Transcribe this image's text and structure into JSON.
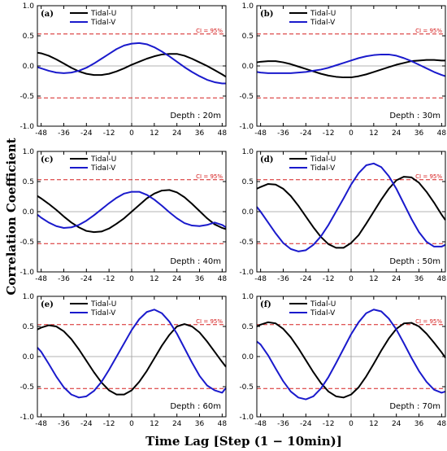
{
  "figure": {
    "xlabel": "Time Lag [Step (1 − 10min)]",
    "ylabel": "Correlation Coefficient"
  },
  "colors": {
    "tidal_u": "#000000",
    "tidal_v": "#1a1acc",
    "ci": "#d62020",
    "zero": "#9a9a9a"
  },
  "chart_data": [
    {
      "type": "line",
      "panel": "(a)",
      "annotation": "Depth : 20m",
      "ci_label": "CI = 95%",
      "ci": 0.53,
      "xlim": [
        -50,
        50
      ],
      "ylim": [
        -1.0,
        1.0
      ],
      "xticks": [
        -48,
        -36,
        -24,
        -12,
        0,
        12,
        24,
        36,
        48
      ],
      "yticks": [
        -1.0,
        -0.5,
        0.0,
        0.5,
        1.0
      ],
      "legend": [
        "Tidal-U",
        "Tidal-V"
      ],
      "x": [
        -50,
        -48,
        -44,
        -40,
        -36,
        -32,
        -28,
        -24,
        -20,
        -16,
        -12,
        -8,
        -4,
        0,
        4,
        8,
        12,
        16,
        20,
        24,
        28,
        32,
        36,
        40,
        44,
        48,
        50
      ],
      "series": [
        {
          "name": "Tidal-U",
          "values": [
            0.22,
            0.21,
            0.17,
            0.11,
            0.04,
            -0.03,
            -0.09,
            -0.13,
            -0.15,
            -0.15,
            -0.13,
            -0.09,
            -0.04,
            0.02,
            0.07,
            0.12,
            0.16,
            0.19,
            0.2,
            0.2,
            0.17,
            0.12,
            0.06,
            0.0,
            -0.07,
            -0.14,
            -0.18
          ]
        },
        {
          "name": "Tidal-V",
          "values": [
            -0.02,
            -0.04,
            -0.08,
            -0.11,
            -0.12,
            -0.11,
            -0.08,
            -0.03,
            0.04,
            0.12,
            0.2,
            0.28,
            0.34,
            0.37,
            0.38,
            0.36,
            0.31,
            0.24,
            0.16,
            0.07,
            -0.02,
            -0.1,
            -0.17,
            -0.23,
            -0.27,
            -0.29,
            -0.29
          ]
        }
      ]
    },
    {
      "type": "line",
      "panel": "(b)",
      "annotation": "Depth : 30m",
      "ci_label": "CI = 95%",
      "ci": 0.53,
      "xlim": [
        -50,
        50
      ],
      "ylim": [
        -1.0,
        1.0
      ],
      "xticks": [
        -48,
        -36,
        -24,
        -12,
        0,
        12,
        24,
        36,
        48
      ],
      "yticks": [
        -1.0,
        -0.5,
        0.0,
        0.5,
        1.0
      ],
      "legend": [
        "Tidal-U",
        "Tidal-V"
      ],
      "x": [
        -50,
        -48,
        -44,
        -40,
        -36,
        -32,
        -28,
        -24,
        -20,
        -16,
        -12,
        -8,
        -4,
        0,
        4,
        8,
        12,
        16,
        20,
        24,
        28,
        32,
        36,
        40,
        44,
        48,
        50
      ],
      "series": [
        {
          "name": "Tidal-U",
          "values": [
            0.06,
            0.07,
            0.08,
            0.08,
            0.06,
            0.03,
            -0.01,
            -0.05,
            -0.09,
            -0.13,
            -0.16,
            -0.18,
            -0.19,
            -0.19,
            -0.17,
            -0.14,
            -0.1,
            -0.06,
            -0.02,
            0.02,
            0.05,
            0.08,
            0.09,
            0.1,
            0.1,
            0.09,
            0.09
          ]
        },
        {
          "name": "Tidal-V",
          "values": [
            -0.1,
            -0.11,
            -0.12,
            -0.12,
            -0.12,
            -0.12,
            -0.11,
            -0.1,
            -0.08,
            -0.06,
            -0.03,
            0.01,
            0.05,
            0.09,
            0.13,
            0.16,
            0.18,
            0.19,
            0.19,
            0.17,
            0.13,
            0.08,
            0.02,
            -0.04,
            -0.1,
            -0.15,
            -0.17
          ]
        }
      ]
    },
    {
      "type": "line",
      "panel": "(c)",
      "annotation": "Depth : 40m",
      "ci_label": "CI = 95%",
      "ci": 0.53,
      "xlim": [
        -50,
        50
      ],
      "ylim": [
        -1.0,
        1.0
      ],
      "xticks": [
        -48,
        -36,
        -24,
        -12,
        0,
        12,
        24,
        36,
        48
      ],
      "yticks": [
        -1.0,
        -0.5,
        0.0,
        0.5,
        1.0
      ],
      "legend": [
        "Tidal-U",
        "Tidal-V"
      ],
      "x": [
        -50,
        -48,
        -44,
        -40,
        -36,
        -32,
        -28,
        -24,
        -20,
        -16,
        -12,
        -8,
        -4,
        0,
        4,
        8,
        12,
        16,
        20,
        24,
        28,
        32,
        36,
        40,
        44,
        48,
        50
      ],
      "series": [
        {
          "name": "Tidal-U",
          "values": [
            0.26,
            0.22,
            0.13,
            0.03,
            -0.08,
            -0.18,
            -0.26,
            -0.32,
            -0.34,
            -0.33,
            -0.28,
            -0.2,
            -0.11,
            0.0,
            0.11,
            0.22,
            0.3,
            0.35,
            0.36,
            0.32,
            0.24,
            0.13,
            0.01,
            -0.11,
            -0.21,
            -0.27,
            -0.29
          ]
        },
        {
          "name": "Tidal-V",
          "values": [
            -0.05,
            -0.1,
            -0.18,
            -0.24,
            -0.27,
            -0.26,
            -0.22,
            -0.15,
            -0.06,
            0.04,
            0.14,
            0.23,
            0.3,
            0.33,
            0.33,
            0.28,
            0.2,
            0.1,
            -0.01,
            -0.11,
            -0.19,
            -0.23,
            -0.24,
            -0.22,
            -0.18,
            -0.22,
            -0.26
          ]
        }
      ]
    },
    {
      "type": "line",
      "panel": "(d)",
      "annotation": "Depth : 50m",
      "ci_label": "CI = 95%",
      "ci": 0.53,
      "xlim": [
        -50,
        50
      ],
      "ylim": [
        -1.0,
        1.0
      ],
      "xticks": [
        -48,
        -36,
        -24,
        -12,
        0,
        12,
        24,
        36,
        48
      ],
      "yticks": [
        -1.0,
        -0.5,
        0.0,
        0.5,
        1.0
      ],
      "legend": [
        "Tidal-U",
        "Tidal-V"
      ],
      "x": [
        -50,
        -48,
        -44,
        -40,
        -36,
        -32,
        -28,
        -24,
        -20,
        -16,
        -12,
        -8,
        -4,
        0,
        4,
        8,
        12,
        16,
        20,
        24,
        28,
        32,
        36,
        40,
        44,
        48,
        50
      ],
      "series": [
        {
          "name": "Tidal-U",
          "values": [
            0.38,
            0.41,
            0.46,
            0.45,
            0.38,
            0.26,
            0.1,
            -0.08,
            -0.26,
            -0.42,
            -0.54,
            -0.6,
            -0.6,
            -0.52,
            -0.39,
            -0.2,
            0.0,
            0.2,
            0.38,
            0.52,
            0.58,
            0.57,
            0.48,
            0.33,
            0.15,
            -0.05,
            -0.14
          ]
        },
        {
          "name": "Tidal-V",
          "values": [
            0.08,
            0.0,
            -0.18,
            -0.36,
            -0.52,
            -0.62,
            -0.66,
            -0.64,
            -0.55,
            -0.41,
            -0.22,
            0.0,
            0.22,
            0.45,
            0.64,
            0.77,
            0.8,
            0.74,
            0.59,
            0.38,
            0.13,
            -0.12,
            -0.34,
            -0.5,
            -0.58,
            -0.58,
            -0.55
          ]
        }
      ]
    },
    {
      "type": "line",
      "panel": "(e)",
      "annotation": "Depth : 60m",
      "ci_label": "CI = 95%",
      "ci": 0.53,
      "xlim": [
        -50,
        50
      ],
      "ylim": [
        -1.0,
        1.0
      ],
      "xticks": [
        -48,
        -36,
        -24,
        -12,
        0,
        12,
        24,
        36,
        48
      ],
      "yticks": [
        -1.0,
        -0.5,
        0.0,
        0.5,
        1.0
      ],
      "legend": [
        "Tidal-U",
        "Tidal-V"
      ],
      "x": [
        -50,
        -48,
        -44,
        -40,
        -36,
        -32,
        -28,
        -24,
        -20,
        -16,
        -12,
        -8,
        -4,
        0,
        4,
        8,
        12,
        16,
        20,
        24,
        28,
        32,
        36,
        40,
        44,
        48,
        50
      ],
      "series": [
        {
          "name": "Tidal-U",
          "values": [
            0.45,
            0.48,
            0.52,
            0.5,
            0.42,
            0.29,
            0.12,
            -0.07,
            -0.26,
            -0.43,
            -0.56,
            -0.63,
            -0.63,
            -0.56,
            -0.42,
            -0.24,
            -0.03,
            0.18,
            0.36,
            0.5,
            0.54,
            0.5,
            0.4,
            0.25,
            0.08,
            -0.09,
            -0.17
          ]
        },
        {
          "name": "Tidal-V",
          "values": [
            0.15,
            0.08,
            -0.12,
            -0.33,
            -0.51,
            -0.63,
            -0.68,
            -0.66,
            -0.57,
            -0.42,
            -0.22,
            0.0,
            0.22,
            0.44,
            0.62,
            0.74,
            0.78,
            0.72,
            0.58,
            0.38,
            0.14,
            -0.1,
            -0.32,
            -0.48,
            -0.56,
            -0.6,
            -0.52
          ]
        }
      ]
    },
    {
      "type": "line",
      "panel": "(f)",
      "annotation": "Depth : 70m",
      "ci_label": "CI = 95%",
      "ci": 0.53,
      "xlim": [
        -50,
        50
      ],
      "ylim": [
        -1.0,
        1.0
      ],
      "xticks": [
        -48,
        -36,
        -24,
        -12,
        0,
        12,
        24,
        36,
        48
      ],
      "yticks": [
        -1.0,
        -0.5,
        0.0,
        0.5,
        1.0
      ],
      "legend": [
        "Tidal-U",
        "Tidal-V"
      ],
      "x": [
        -50,
        -48,
        -44,
        -40,
        -36,
        -32,
        -28,
        -24,
        -20,
        -16,
        -12,
        -8,
        -4,
        0,
        4,
        8,
        12,
        16,
        20,
        24,
        28,
        32,
        36,
        40,
        44,
        48,
        50
      ],
      "series": [
        {
          "name": "Tidal-U",
          "values": [
            0.5,
            0.53,
            0.57,
            0.55,
            0.46,
            0.32,
            0.14,
            -0.06,
            -0.26,
            -0.44,
            -0.58,
            -0.66,
            -0.68,
            -0.63,
            -0.51,
            -0.33,
            -0.12,
            0.1,
            0.3,
            0.46,
            0.55,
            0.56,
            0.5,
            0.38,
            0.23,
            0.07,
            -0.02
          ]
        },
        {
          "name": "Tidal-V",
          "values": [
            0.25,
            0.2,
            0.02,
            -0.2,
            -0.41,
            -0.58,
            -0.68,
            -0.71,
            -0.66,
            -0.53,
            -0.34,
            -0.11,
            0.13,
            0.37,
            0.57,
            0.72,
            0.78,
            0.75,
            0.63,
            0.45,
            0.22,
            -0.02,
            -0.24,
            -0.42,
            -0.55,
            -0.6,
            -0.58
          ]
        }
      ]
    }
  ]
}
